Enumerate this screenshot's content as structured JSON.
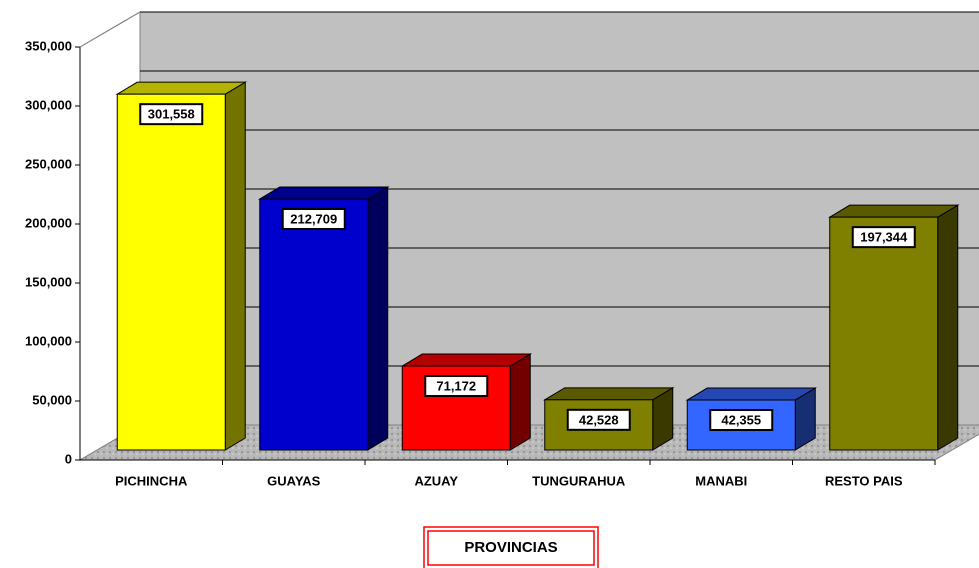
{
  "chart_data": {
    "type": "bar3d",
    "x_label": "PROVINCIAS",
    "categories": [
      "PICHINCHA",
      "GUAYAS",
      "AZUAY",
      "TUNGURAHUA",
      "MANABI",
      "RESTO PAIS"
    ],
    "values": [
      301558,
      212709,
      71172,
      42528,
      42355,
      197344
    ],
    "value_labels": [
      "301,558",
      "212,709",
      "71,172",
      "42,528",
      "42,355",
      "197,344"
    ],
    "colors": [
      "#ffff00",
      "#0000cc",
      "#ff0000",
      "#808000",
      "#3366ff",
      "#808000"
    ],
    "ylim": [
      0,
      350000
    ],
    "yticks": [
      0,
      {
        "value": 50000,
        "label": "50,000"
      },
      {
        "value": 100000,
        "label": "100,000"
      },
      {
        "value": 150000,
        "label": "150,000"
      },
      {
        "value": 200000,
        "label": "200,000"
      },
      {
        "value": 250000,
        "label": "250,000"
      },
      {
        "value": 300000,
        "label": "300,000"
      },
      {
        "value": 350000,
        "label": "350,000"
      }
    ],
    "grid": true
  }
}
